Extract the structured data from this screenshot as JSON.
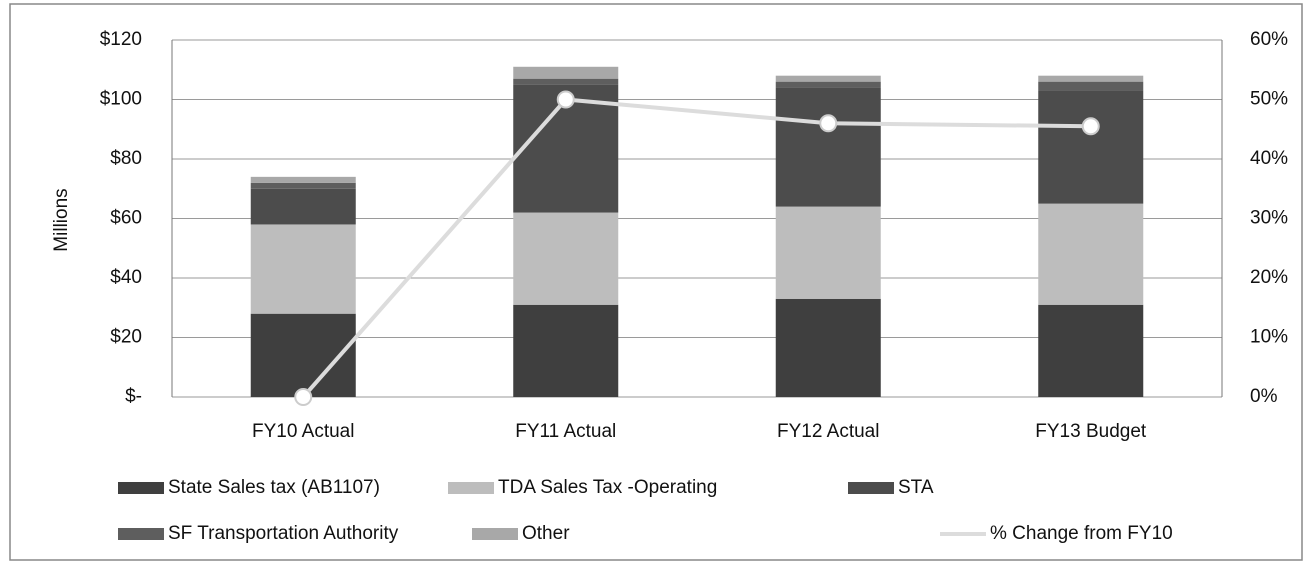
{
  "chart_data": {
    "type": "bar",
    "stacked": true,
    "ylabel": "Millions",
    "categories": [
      "FY10 Actual",
      "FY11 Actual",
      "FY12 Actual",
      "FY13 Budget"
    ],
    "series": [
      {
        "name": "State Sales tax (AB1107)",
        "color": "#3f3f3f",
        "values": [
          28,
          31,
          33,
          31
        ]
      },
      {
        "name": "TDA Sales Tax -Operating",
        "color": "#bdbdbd",
        "values": [
          30,
          31,
          31,
          34
        ]
      },
      {
        "name": "STA",
        "color": "#4c4c4c",
        "values": [
          12,
          43,
          40,
          38
        ]
      },
      {
        "name": "SF Transportation Authority",
        "color": "#5e5e5e",
        "values": [
          2,
          2,
          2,
          3
        ]
      },
      {
        "name": "Other",
        "color": "#a8a8a8",
        "values": [
          2,
          4,
          2,
          2
        ]
      },
      {
        "name": "% Change from FY10",
        "color": "#dcdcdc",
        "type": "line",
        "axis": "y2",
        "values": [
          0,
          50,
          46,
          45.5
        ]
      }
    ],
    "ylim": [
      0,
      120
    ],
    "yticks": [
      {
        "value": 0,
        "label": "$-"
      },
      {
        "value": 20,
        "label": "$20"
      },
      {
        "value": 40,
        "label": "$40"
      },
      {
        "value": 60,
        "label": "$60"
      },
      {
        "value": 80,
        "label": "$80"
      },
      {
        "value": 100,
        "label": "$100"
      },
      {
        "value": 120,
        "label": "$120"
      }
    ],
    "y2lim": [
      0,
      60
    ],
    "y2ticks": [
      {
        "value": 0,
        "label": "0%"
      },
      {
        "value": 10,
        "label": "10%"
      },
      {
        "value": 20,
        "label": "20%"
      },
      {
        "value": 30,
        "label": "30%"
      },
      {
        "value": 40,
        "label": "40%"
      },
      {
        "value": 50,
        "label": "50%"
      },
      {
        "value": 60,
        "label": "60%"
      }
    ],
    "grid": true
  }
}
